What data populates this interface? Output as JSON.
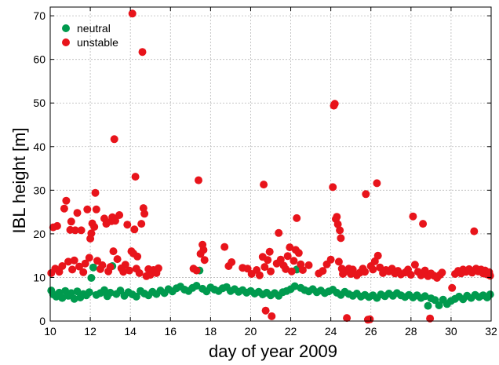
{
  "chart_data": {
    "type": "scatter",
    "xlabel": "day of year 2009",
    "ylabel": "IBL height [m]",
    "xlim": [
      10,
      32
    ],
    "ylim": [
      0,
      72
    ],
    "xticks": [
      "10",
      "12",
      "14",
      "16",
      "18",
      "20",
      "22",
      "24",
      "26",
      "28",
      "30",
      "32"
    ],
    "yticks": [
      "0",
      "10",
      "20",
      "30",
      "40",
      "50",
      "60",
      "70"
    ],
    "grid": true,
    "legend_position": "top-left",
    "series": [
      {
        "name": "neutral",
        "color": "#009a4e",
        "points": [
          [
            10.05,
            7.0
          ],
          [
            10.15,
            6.1
          ],
          [
            10.3,
            5.6
          ],
          [
            10.45,
            6.5
          ],
          [
            10.6,
            5.3
          ],
          [
            10.75,
            6.9
          ],
          [
            10.9,
            5.8
          ],
          [
            11.05,
            6.4
          ],
          [
            11.2,
            5.1
          ],
          [
            11.35,
            6.8
          ],
          [
            11.5,
            5.4
          ],
          [
            11.65,
            6.2
          ],
          [
            11.8,
            5.9
          ],
          [
            11.95,
            6.6
          ],
          [
            12.05,
            9.9
          ],
          [
            12.15,
            12.3
          ],
          [
            12.3,
            6.0
          ],
          [
            12.5,
            6.4
          ],
          [
            12.7,
            7.1
          ],
          [
            12.85,
            5.7
          ],
          [
            13.0,
            6.5
          ],
          [
            13.1,
            12.6
          ],
          [
            13.3,
            6.2
          ],
          [
            13.5,
            7.0
          ],
          [
            13.7,
            5.8
          ],
          [
            13.9,
            6.6
          ],
          [
            14.1,
            6.1
          ],
          [
            14.3,
            5.6
          ],
          [
            14.5,
            6.9
          ],
          [
            14.7,
            6.3
          ],
          [
            14.9,
            5.9
          ],
          [
            15.1,
            6.7
          ],
          [
            15.3,
            6.2
          ],
          [
            15.5,
            7.0
          ],
          [
            15.7,
            6.4
          ],
          [
            15.9,
            7.3
          ],
          [
            16.1,
            6.8
          ],
          [
            16.3,
            7.5
          ],
          [
            16.5,
            7.9
          ],
          [
            16.7,
            7.2
          ],
          [
            16.9,
            6.9
          ],
          [
            17.1,
            7.6
          ],
          [
            17.3,
            8.1
          ],
          [
            17.45,
            11.6
          ],
          [
            17.6,
            7.4
          ],
          [
            17.8,
            6.8
          ],
          [
            18.0,
            7.7
          ],
          [
            18.2,
            7.2
          ],
          [
            18.4,
            6.9
          ],
          [
            18.6,
            7.5
          ],
          [
            18.8,
            7.8
          ],
          [
            19.0,
            6.9
          ],
          [
            19.2,
            7.3
          ],
          [
            19.4,
            6.7
          ],
          [
            19.6,
            7.1
          ],
          [
            19.8,
            6.5
          ],
          [
            20.0,
            6.9
          ],
          [
            20.2,
            6.3
          ],
          [
            20.4,
            6.7
          ],
          [
            20.6,
            6.1
          ],
          [
            20.8,
            6.5
          ],
          [
            21.0,
            5.9
          ],
          [
            21.2,
            6.4
          ],
          [
            21.4,
            5.8
          ],
          [
            21.6,
            6.6
          ],
          [
            21.8,
            6.9
          ],
          [
            22.0,
            7.3
          ],
          [
            22.2,
            8.0
          ],
          [
            22.3,
            11.8
          ],
          [
            22.5,
            7.6
          ],
          [
            22.7,
            7.1
          ],
          [
            22.9,
            6.8
          ],
          [
            23.1,
            7.3
          ],
          [
            23.3,
            6.6
          ],
          [
            23.5,
            7.0
          ],
          [
            23.7,
            6.4
          ],
          [
            23.9,
            6.8
          ],
          [
            24.1,
            7.2
          ],
          [
            24.3,
            6.5
          ],
          [
            24.5,
            6.0
          ],
          [
            24.7,
            6.7
          ],
          [
            24.9,
            6.2
          ],
          [
            25.1,
            5.8
          ],
          [
            25.3,
            6.3
          ],
          [
            25.5,
            5.6
          ],
          [
            25.7,
            6.0
          ],
          [
            25.9,
            5.5
          ],
          [
            26.1,
            5.9
          ],
          [
            26.3,
            5.3
          ],
          [
            26.5,
            6.1
          ],
          [
            26.7,
            5.7
          ],
          [
            26.9,
            6.3
          ],
          [
            27.1,
            5.8
          ],
          [
            27.3,
            6.4
          ],
          [
            27.5,
            5.9
          ],
          [
            27.7,
            5.5
          ],
          [
            27.9,
            6.0
          ],
          [
            28.1,
            5.4
          ],
          [
            28.3,
            5.9
          ],
          [
            28.5,
            5.3
          ],
          [
            28.7,
            5.7
          ],
          [
            28.85,
            3.5
          ],
          [
            29.0,
            5.2
          ],
          [
            29.2,
            4.8
          ],
          [
            29.4,
            3.6
          ],
          [
            29.6,
            4.9
          ],
          [
            29.8,
            3.9
          ],
          [
            30.0,
            4.6
          ],
          [
            30.2,
            5.1
          ],
          [
            30.4,
            5.6
          ],
          [
            30.6,
            5.0
          ],
          [
            30.8,
            5.8
          ],
          [
            31.0,
            5.3
          ],
          [
            31.2,
            6.0
          ],
          [
            31.4,
            5.5
          ],
          [
            31.6,
            5.9
          ],
          [
            31.8,
            5.4
          ],
          [
            31.95,
            6.1
          ]
        ]
      },
      {
        "name": "unstable",
        "color": "#e8141b",
        "points": [
          [
            10.05,
            11.0
          ],
          [
            10.15,
            21.5
          ],
          [
            10.25,
            12.0
          ],
          [
            10.35,
            21.8
          ],
          [
            10.45,
            11.3
          ],
          [
            10.6,
            12.6
          ],
          [
            10.7,
            25.8
          ],
          [
            10.8,
            27.6
          ],
          [
            10.9,
            13.6
          ],
          [
            11.0,
            20.9
          ],
          [
            11.05,
            22.8
          ],
          [
            11.1,
            11.8
          ],
          [
            11.2,
            13.9
          ],
          [
            11.25,
            20.8
          ],
          [
            11.35,
            24.8
          ],
          [
            11.45,
            12.5
          ],
          [
            11.55,
            20.8
          ],
          [
            11.65,
            11.2
          ],
          [
            11.75,
            13.2
          ],
          [
            11.85,
            25.6
          ],
          [
            11.95,
            14.5
          ],
          [
            12.0,
            18.9
          ],
          [
            12.05,
            20.1
          ],
          [
            12.1,
            22.4
          ],
          [
            12.2,
            21.6
          ],
          [
            12.25,
            29.4
          ],
          [
            12.3,
            25.6
          ],
          [
            12.35,
            13.8
          ],
          [
            12.5,
            11.9
          ],
          [
            12.6,
            12.8
          ],
          [
            12.7,
            23.5
          ],
          [
            12.8,
            22.3
          ],
          [
            12.9,
            11.4
          ],
          [
            13.0,
            12.4
          ],
          [
            13.05,
            22.9
          ],
          [
            13.1,
            23.8
          ],
          [
            13.15,
            16.0
          ],
          [
            13.2,
            41.7
          ],
          [
            13.25,
            23.0
          ],
          [
            13.35,
            14.2
          ],
          [
            13.45,
            24.3
          ],
          [
            13.55,
            12.1
          ],
          [
            13.65,
            11.3
          ],
          [
            13.75,
            12.9
          ],
          [
            13.85,
            22.1
          ],
          [
            13.95,
            11.6
          ],
          [
            14.05,
            16.0
          ],
          [
            14.1,
            70.5
          ],
          [
            14.15,
            15.5
          ],
          [
            14.2,
            21.0
          ],
          [
            14.25,
            33.1
          ],
          [
            14.3,
            12.0
          ],
          [
            14.35,
            14.8
          ],
          [
            14.45,
            11.0
          ],
          [
            14.55,
            22.3
          ],
          [
            14.6,
            61.7
          ],
          [
            14.65,
            25.9
          ],
          [
            14.7,
            24.6
          ],
          [
            14.8,
            10.3
          ],
          [
            14.9,
            11.9
          ],
          [
            15.0,
            10.6
          ],
          [
            15.15,
            11.7
          ],
          [
            15.3,
            11.0
          ],
          [
            15.4,
            12.1
          ],
          [
            17.15,
            12.0
          ],
          [
            17.3,
            11.6
          ],
          [
            17.4,
            32.3
          ],
          [
            17.5,
            15.4
          ],
          [
            17.6,
            17.5
          ],
          [
            17.65,
            16.3
          ],
          [
            17.7,
            14.0
          ],
          [
            18.7,
            17.0
          ],
          [
            18.9,
            12.6
          ],
          [
            19.05,
            13.5
          ],
          [
            19.6,
            12.2
          ],
          [
            19.85,
            12.0
          ],
          [
            20.05,
            10.8
          ],
          [
            20.3,
            11.7
          ],
          [
            20.45,
            10.5
          ],
          [
            20.6,
            14.7
          ],
          [
            20.65,
            31.3
          ],
          [
            20.7,
            12.4
          ],
          [
            20.75,
            2.4
          ],
          [
            20.85,
            14.0
          ],
          [
            20.95,
            15.9
          ],
          [
            21.0,
            11.4
          ],
          [
            21.05,
            1.1
          ],
          [
            21.3,
            13.2
          ],
          [
            21.4,
            20.2
          ],
          [
            21.5,
            14.1
          ],
          [
            21.65,
            12.7
          ],
          [
            21.75,
            11.9
          ],
          [
            21.85,
            14.9
          ],
          [
            21.95,
            16.9
          ],
          [
            22.05,
            11.4
          ],
          [
            22.15,
            13.8
          ],
          [
            22.25,
            16.3
          ],
          [
            22.3,
            23.6
          ],
          [
            22.4,
            15.6
          ],
          [
            22.5,
            13.0
          ],
          [
            22.6,
            11.7
          ],
          [
            22.9,
            12.8
          ],
          [
            23.4,
            10.9
          ],
          [
            23.6,
            11.5
          ],
          [
            23.8,
            13.0
          ],
          [
            24.0,
            14.1
          ],
          [
            24.1,
            30.7
          ],
          [
            24.15,
            49.4
          ],
          [
            24.2,
            49.8
          ],
          [
            24.25,
            23.4
          ],
          [
            24.3,
            23.9
          ],
          [
            24.35,
            22.2
          ],
          [
            24.4,
            13.6
          ],
          [
            24.45,
            20.8
          ],
          [
            24.5,
            19.0
          ],
          [
            24.55,
            12.0
          ],
          [
            24.6,
            10.8
          ],
          [
            24.7,
            11.3
          ],
          [
            24.8,
            0.7
          ],
          [
            24.9,
            12.0
          ],
          [
            25.0,
            10.8
          ],
          [
            25.1,
            11.8
          ],
          [
            25.3,
            10.5
          ],
          [
            25.45,
            11.1
          ],
          [
            25.6,
            12.0
          ],
          [
            25.7,
            11.3
          ],
          [
            25.75,
            29.1
          ],
          [
            25.85,
            0.3
          ],
          [
            25.95,
            0.4
          ],
          [
            26.0,
            12.6
          ],
          [
            26.1,
            11.8
          ],
          [
            26.2,
            13.7
          ],
          [
            26.3,
            31.6
          ],
          [
            26.35,
            15.0
          ],
          [
            26.45,
            12.3
          ],
          [
            26.6,
            11.0
          ],
          [
            26.75,
            11.7
          ],
          [
            26.9,
            11.4
          ],
          [
            27.05,
            12.0
          ],
          [
            27.2,
            10.9
          ],
          [
            27.35,
            11.5
          ],
          [
            27.5,
            10.7
          ],
          [
            27.7,
            11.1
          ],
          [
            27.85,
            11.8
          ],
          [
            28.0,
            10.6
          ],
          [
            28.1,
            24.0
          ],
          [
            28.2,
            12.9
          ],
          [
            28.35,
            11.3
          ],
          [
            28.5,
            10.5
          ],
          [
            28.6,
            22.3
          ],
          [
            28.7,
            11.6
          ],
          [
            28.85,
            10.3
          ],
          [
            28.95,
            0.6
          ],
          [
            29.0,
            10.9
          ],
          [
            29.15,
            10.4
          ],
          [
            29.3,
            9.9
          ],
          [
            29.45,
            10.6
          ],
          [
            29.55,
            11.1
          ],
          [
            30.05,
            7.6
          ],
          [
            30.2,
            10.8
          ],
          [
            30.35,
            11.5
          ],
          [
            30.5,
            10.9
          ],
          [
            30.6,
            11.8
          ],
          [
            30.75,
            11.3
          ],
          [
            30.9,
            11.9
          ],
          [
            31.05,
            11.1
          ],
          [
            31.15,
            20.6
          ],
          [
            31.25,
            12.0
          ],
          [
            31.35,
            11.4
          ],
          [
            31.5,
            11.8
          ],
          [
            31.6,
            10.9
          ],
          [
            31.7,
            11.6
          ],
          [
            31.8,
            10.7
          ],
          [
            31.9,
            11.2
          ],
          [
            31.95,
            10.4
          ]
        ]
      }
    ]
  }
}
